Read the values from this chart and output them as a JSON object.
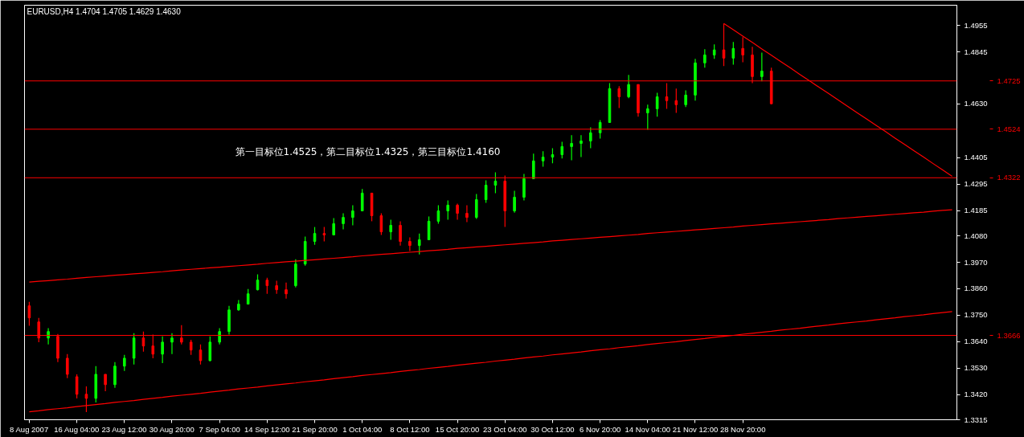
{
  "chart_data": {
    "type": "candlestick",
    "title": "EURUSD,H4  1.4704 1.4705 1.4629 1.4630",
    "annotations": [
      "第一目标位1.4525，第二目标位1.4325，第三目标位1.4160"
    ],
    "categories": [
      "8 Aug 2007",
      null,
      null,
      null,
      null,
      "16 Aug 04:00",
      null,
      null,
      null,
      null,
      "23 Aug 12:00",
      null,
      null,
      null,
      null,
      "30 Aug 20:00",
      null,
      null,
      null,
      null,
      "7 Sep 04:00",
      null,
      null,
      null,
      null,
      "14 Sep 12:00",
      null,
      null,
      null,
      null,
      "21 Sep 20:00",
      null,
      null,
      null,
      null,
      "1 Oct 04:00",
      null,
      null,
      null,
      null,
      "8 Oct 12:00",
      null,
      null,
      null,
      null,
      "15 Oct 20:00",
      null,
      null,
      null,
      null,
      "23 Oct 04:00",
      null,
      null,
      null,
      null,
      "30 Oct 12:00",
      null,
      null,
      null,
      null,
      "6 Nov 20:00",
      null,
      null,
      null,
      null,
      "14 Nov 04:00",
      null,
      null,
      null,
      null,
      "21 Nov 12:00",
      null,
      null,
      null,
      null,
      "28 Nov 20:00",
      null,
      null,
      null,
      null,
      null,
      null,
      null,
      null,
      null,
      null,
      null,
      null,
      null,
      null,
      null,
      null,
      null,
      null,
      null,
      null,
      null,
      null
    ],
    "ohlc": [
      [
        1.3789,
        1.3806,
        1.3706,
        1.3739
      ],
      [
        1.3722,
        1.3739,
        1.3638,
        1.3655
      ],
      [
        1.3655,
        1.3696,
        1.3628,
        1.3682
      ],
      [
        1.3662,
        1.3672,
        1.3555,
        1.3571
      ],
      [
        1.3571,
        1.3588,
        1.3488,
        1.3504
      ],
      [
        1.3494,
        1.3504,
        1.3404,
        1.3421
      ],
      [
        1.3421,
        1.3454,
        1.3347,
        1.3404
      ],
      [
        1.3404,
        1.3538,
        1.3387,
        1.3504
      ],
      [
        1.3504,
        1.3504,
        1.3434,
        1.3461
      ],
      [
        1.3461,
        1.3555,
        1.3448,
        1.3538
      ],
      [
        1.3538,
        1.3585,
        1.3518,
        1.3571
      ],
      [
        1.3571,
        1.3675,
        1.3545,
        1.3655
      ],
      [
        1.3655,
        1.3682,
        1.3598,
        1.3622
      ],
      [
        1.3622,
        1.3669,
        1.3571,
        1.3588
      ],
      [
        1.3588,
        1.3662,
        1.3551,
        1.3638
      ],
      [
        1.3638,
        1.3675,
        1.3588,
        1.3655
      ],
      [
        1.3655,
        1.3709,
        1.3628,
        1.3638
      ],
      [
        1.3638,
        1.3648,
        1.3585,
        1.3605
      ],
      [
        1.3605,
        1.3628,
        1.3545,
        1.3561
      ],
      [
        1.3561,
        1.3662,
        1.3558,
        1.3638
      ],
      [
        1.3638,
        1.3696,
        1.3628,
        1.3682
      ],
      [
        1.3682,
        1.3789,
        1.3669,
        1.3772
      ],
      [
        1.3772,
        1.3813,
        1.3769,
        1.3796
      ],
      [
        1.3796,
        1.3859,
        1.3796,
        1.3839
      ],
      [
        1.3856,
        1.392,
        1.3853,
        1.3896
      ],
      [
        1.3896,
        1.3906,
        1.3839,
        1.3873
      ],
      [
        1.3873,
        1.3893,
        1.3839,
        1.3856
      ],
      [
        1.3856,
        1.3886,
        1.3819,
        1.3839
      ],
      [
        1.3873,
        1.3983,
        1.3866,
        1.3963
      ],
      [
        1.3963,
        1.4077,
        1.3956,
        1.4057
      ],
      [
        1.4057,
        1.4117,
        1.4043,
        1.409
      ],
      [
        1.409,
        1.4117,
        1.4057,
        1.4084
      ],
      [
        1.4084,
        1.4154,
        1.4084,
        1.4131
      ],
      [
        1.4131,
        1.4174,
        1.4107,
        1.4157
      ],
      [
        1.4157,
        1.4208,
        1.4124,
        1.4184
      ],
      [
        1.4184,
        1.4275,
        1.4184,
        1.4258
      ],
      [
        1.4258,
        1.4258,
        1.4141,
        1.4164
      ],
      [
        1.4164,
        1.4174,
        1.4084,
        1.4097
      ],
      [
        1.4097,
        1.4147,
        1.4064,
        1.4124
      ],
      [
        1.4124,
        1.4141,
        1.404,
        1.4057
      ],
      [
        1.4057,
        1.4074,
        1.4017,
        1.404
      ],
      [
        1.404,
        1.409,
        1.4003,
        1.4064
      ],
      [
        1.4064,
        1.4161,
        1.4064,
        1.4141
      ],
      [
        1.4141,
        1.4208,
        1.4131,
        1.4184
      ],
      [
        1.4184,
        1.4228,
        1.4147,
        1.4208
      ],
      [
        1.4208,
        1.4214,
        1.4147,
        1.4174
      ],
      [
        1.4174,
        1.4208,
        1.4137,
        1.4157
      ],
      [
        1.4157,
        1.4254,
        1.4151,
        1.4231
      ],
      [
        1.4231,
        1.4311,
        1.4218,
        1.4291
      ],
      [
        1.4291,
        1.4345,
        1.4258,
        1.4308
      ],
      [
        1.4308,
        1.4331,
        1.4117,
        1.4184
      ],
      [
        1.4184,
        1.4268,
        1.4177,
        1.4241
      ],
      [
        1.4241,
        1.4338,
        1.4228,
        1.4318
      ],
      [
        1.4318,
        1.4422,
        1.4318,
        1.4392
      ],
      [
        1.4392,
        1.4432,
        1.4368,
        1.4408
      ],
      [
        1.4408,
        1.4445,
        1.4382,
        1.4418
      ],
      [
        1.4418,
        1.4472,
        1.4402,
        1.4452
      ],
      [
        1.4452,
        1.4499,
        1.4395,
        1.4465
      ],
      [
        1.4465,
        1.4499,
        1.4408,
        1.4475
      ],
      [
        1.4475,
        1.4532,
        1.4445,
        1.4509
      ],
      [
        1.4509,
        1.4562,
        1.4485,
        1.4552
      ],
      [
        1.4552,
        1.4716,
        1.4552,
        1.4693
      ],
      [
        1.4693,
        1.4703,
        1.4612,
        1.4659
      ],
      [
        1.4659,
        1.475,
        1.4653,
        1.471
      ],
      [
        1.471,
        1.471,
        1.4576,
        1.4592
      ],
      [
        1.4592,
        1.4626,
        1.4522,
        1.4609
      ],
      [
        1.4609,
        1.4676,
        1.4576,
        1.4659
      ],
      [
        1.4659,
        1.4716,
        1.4609,
        1.4643
      ],
      [
        1.4643,
        1.4693,
        1.4592,
        1.4626
      ],
      [
        1.4626,
        1.4686,
        1.4616,
        1.4666
      ],
      [
        1.4666,
        1.4817,
        1.4643,
        1.48
      ],
      [
        1.48,
        1.4857,
        1.478,
        1.4833
      ],
      [
        1.4833,
        1.4877,
        1.4817,
        1.4854
      ],
      [
        1.4854,
        1.4964,
        1.4787,
        1.482
      ],
      [
        1.482,
        1.4887,
        1.4793,
        1.486
      ],
      [
        1.486,
        1.4907,
        1.4803,
        1.4833
      ],
      [
        1.4833,
        1.4867,
        1.4716,
        1.4743
      ],
      [
        1.4743,
        1.4843,
        1.4723,
        1.4766
      ],
      [
        1.4766,
        1.478,
        1.4629,
        1.463
      ],
      null,
      null,
      null,
      null,
      null,
      null,
      null,
      null,
      null,
      null,
      null,
      null,
      null,
      null,
      null,
      null,
      null,
      null,
      null
    ],
    "colors": [
      "#ff0000",
      "#ff0000",
      "#00ff00",
      "#ff0000",
      "#ff0000",
      "#ff0000",
      "#ff0000",
      "#00ff00",
      "#ff0000",
      "#00ff00",
      "#00ff00",
      "#00ff00",
      "#ff0000",
      "#ff0000",
      "#00ff00",
      "#00ff00",
      "#ff0000",
      "#ff0000",
      "#ff0000",
      "#00ff00",
      "#00ff00",
      "#00ff00",
      "#00ff00",
      "#00ff00",
      "#00ff00",
      "#ff0000",
      "#ff0000",
      "#ff0000",
      "#00ff00",
      "#00ff00",
      "#00ff00",
      "#ff0000",
      "#00ff00",
      "#00ff00",
      "#00ff00",
      "#00ff00",
      "#ff0000",
      "#ff0000",
      "#00ff00",
      "#ff0000",
      "#ff0000",
      "#00ff00",
      "#00ff00",
      "#00ff00",
      "#00ff00",
      "#ff0000",
      "#ff0000",
      "#00ff00",
      "#00ff00",
      "#00ff00",
      "#ff0000",
      "#00ff00",
      "#00ff00",
      "#00ff00",
      "#00ff00",
      "#00ff00",
      "#00ff00",
      "#00ff00",
      "#00ff00",
      "#00ff00",
      "#00ff00",
      "#00ff00",
      "#ff0000",
      "#00ff00",
      "#ff0000",
      "#00ff00",
      "#00ff00",
      "#ff0000",
      "#ff0000",
      "#00ff00",
      "#00ff00",
      "#00ff00",
      "#00ff00",
      "#ff0000",
      "#00ff00",
      "#ff0000",
      "#ff0000",
      "#00ff00",
      "#ff0000",
      null,
      null,
      null,
      null,
      null,
      null,
      null,
      null,
      null,
      null,
      null,
      null,
      null,
      null,
      null,
      null,
      null,
      null,
      null
    ],
    "series": [
      {
        "type": "line",
        "color": "#ff0000",
        "values": [
          1.3888,
          1.3891,
          1.3894,
          1.3897,
          1.39,
          1.3904,
          1.3907,
          1.391,
          1.3913,
          1.3916,
          1.3919,
          1.3922,
          1.3925,
          1.3928,
          1.3931,
          1.3935,
          1.3938,
          1.3941,
          1.3944,
          1.3947,
          1.395,
          1.3953,
          1.3956,
          1.3959,
          1.3962,
          1.3966,
          1.3969,
          1.3972,
          1.3975,
          1.3978,
          1.3981,
          1.3984,
          1.3987,
          1.399,
          1.3993,
          1.3997,
          1.4,
          1.4003,
          1.4006,
          1.4009,
          1.4012,
          1.4015,
          1.4018,
          1.4021,
          1.4024,
          1.4028,
          1.4031,
          1.4034,
          1.4037,
          1.404,
          1.4043,
          1.4046,
          1.4049,
          1.4052,
          1.4055,
          1.4059,
          1.4062,
          1.4065,
          1.4068,
          1.4071,
          1.4074,
          1.4077,
          1.408,
          1.4083,
          1.4086,
          1.409,
          1.4093,
          1.4096,
          1.4099,
          1.4102,
          1.4105,
          1.4108,
          1.4111,
          1.4114,
          1.4117,
          1.4121,
          1.4124,
          1.4127,
          1.413,
          1.4133,
          1.4136,
          1.4139,
          1.4142,
          1.4145,
          1.4148,
          1.4152,
          1.4155,
          1.4158,
          1.4161,
          1.4164,
          1.4167,
          1.417,
          1.4173,
          1.4176,
          1.4179,
          1.4183,
          1.4186,
          1.4189
        ]
      },
      {
        "type": "line",
        "color": "#ff0000",
        "values": [
          1.3348,
          1.3352,
          1.3357,
          1.3361,
          1.3365,
          1.337,
          1.3374,
          1.3378,
          1.3382,
          1.3387,
          1.3391,
          1.3395,
          1.34,
          1.3404,
          1.3408,
          1.3413,
          1.3417,
          1.3421,
          1.3425,
          1.343,
          1.3434,
          1.3438,
          1.3443,
          1.3447,
          1.3451,
          1.3456,
          1.346,
          1.3464,
          1.3468,
          1.3473,
          1.3477,
          1.3481,
          1.3486,
          1.349,
          1.3494,
          1.3499,
          1.3503,
          1.3507,
          1.3511,
          1.3516,
          1.352,
          1.3524,
          1.3529,
          1.3533,
          1.3537,
          1.3542,
          1.3546,
          1.355,
          1.3554,
          1.3559,
          1.3563,
          1.3567,
          1.3572,
          1.3576,
          1.358,
          1.3585,
          1.3589,
          1.3593,
          1.3597,
          1.3602,
          1.3606,
          1.361,
          1.3615,
          1.3619,
          1.3623,
          1.3628,
          1.3632,
          1.3636,
          1.364,
          1.3645,
          1.3649,
          1.3653,
          1.3658,
          1.3662,
          1.3666,
          1.3671,
          1.3675,
          1.3679,
          1.3683,
          1.3688,
          1.3692,
          1.3696,
          1.3701,
          1.3705,
          1.3709,
          1.3714,
          1.3718,
          1.3722,
          1.3726,
          1.3731,
          1.3735,
          1.3739,
          1.3744,
          1.3748,
          1.3752,
          1.3757,
          1.3761,
          1.3765
        ]
      },
      {
        "type": "line",
        "color": "#ff0000",
        "values": [
          null,
          null,
          null,
          null,
          null,
          null,
          null,
          null,
          null,
          null,
          null,
          null,
          null,
          null,
          null,
          null,
          null,
          null,
          null,
          null,
          null,
          null,
          null,
          null,
          null,
          null,
          null,
          null,
          null,
          null,
          null,
          null,
          null,
          null,
          null,
          null,
          null,
          null,
          null,
          null,
          null,
          null,
          null,
          null,
          null,
          null,
          null,
          null,
          null,
          null,
          null,
          null,
          null,
          null,
          null,
          null,
          null,
          null,
          null,
          null,
          null,
          null,
          null,
          null,
          null,
          null,
          null,
          null,
          null,
          null,
          null,
          null,
          null,
          1.4964,
          1.4938,
          1.4911,
          1.4885,
          1.4858,
          1.4832,
          1.4805,
          1.4779,
          1.4752,
          1.4726,
          1.4699,
          1.4673,
          1.4646,
          1.462,
          1.4593,
          1.4567,
          1.454,
          1.4514,
          1.4487,
          1.4461,
          1.4434,
          1.4408,
          1.4381,
          1.4355,
          1.4328
        ]
      }
    ],
    "ref_lines": [
      {
        "axis": "y",
        "value": 1.4725,
        "label": "1.4725",
        "color": "#ff0000"
      },
      {
        "axis": "y",
        "value": 1.4524,
        "label": "1.4524",
        "color": "#ff0000"
      },
      {
        "axis": "y",
        "value": 1.4322,
        "label": "1.4322",
        "color": "#ff0000"
      },
      {
        "axis": "y",
        "value": 1.3666,
        "label": "1.3666",
        "color": "#ff0000"
      }
    ],
    "ylim": [
      1.3315,
      1.504
    ],
    "yticks": [
      {
        "value": 1.4955,
        "label": "1.4955"
      },
      {
        "value": 1.4845,
        "label": "1.4845"
      },
      {
        "value": 1.463,
        "label": "1.4630"
      },
      {
        "value": 1.4405,
        "label": "1.4405"
      },
      {
        "value": 1.4295,
        "label": "1.4295"
      },
      {
        "value": 1.4185,
        "label": "1.4185"
      },
      {
        "value": 1.408,
        "label": "1.4080"
      },
      {
        "value": 1.397,
        "label": "1.3970"
      },
      {
        "value": 1.386,
        "label": "1.3860"
      },
      {
        "value": 1.375,
        "label": "1.3750"
      },
      {
        "value": 1.364,
        "label": "1.3640"
      },
      {
        "value": 1.353,
        "label": "1.3530"
      },
      {
        "value": 1.342,
        "label": "1.3420"
      },
      {
        "value": 1.3315,
        "label": "1.3315"
      }
    ]
  }
}
